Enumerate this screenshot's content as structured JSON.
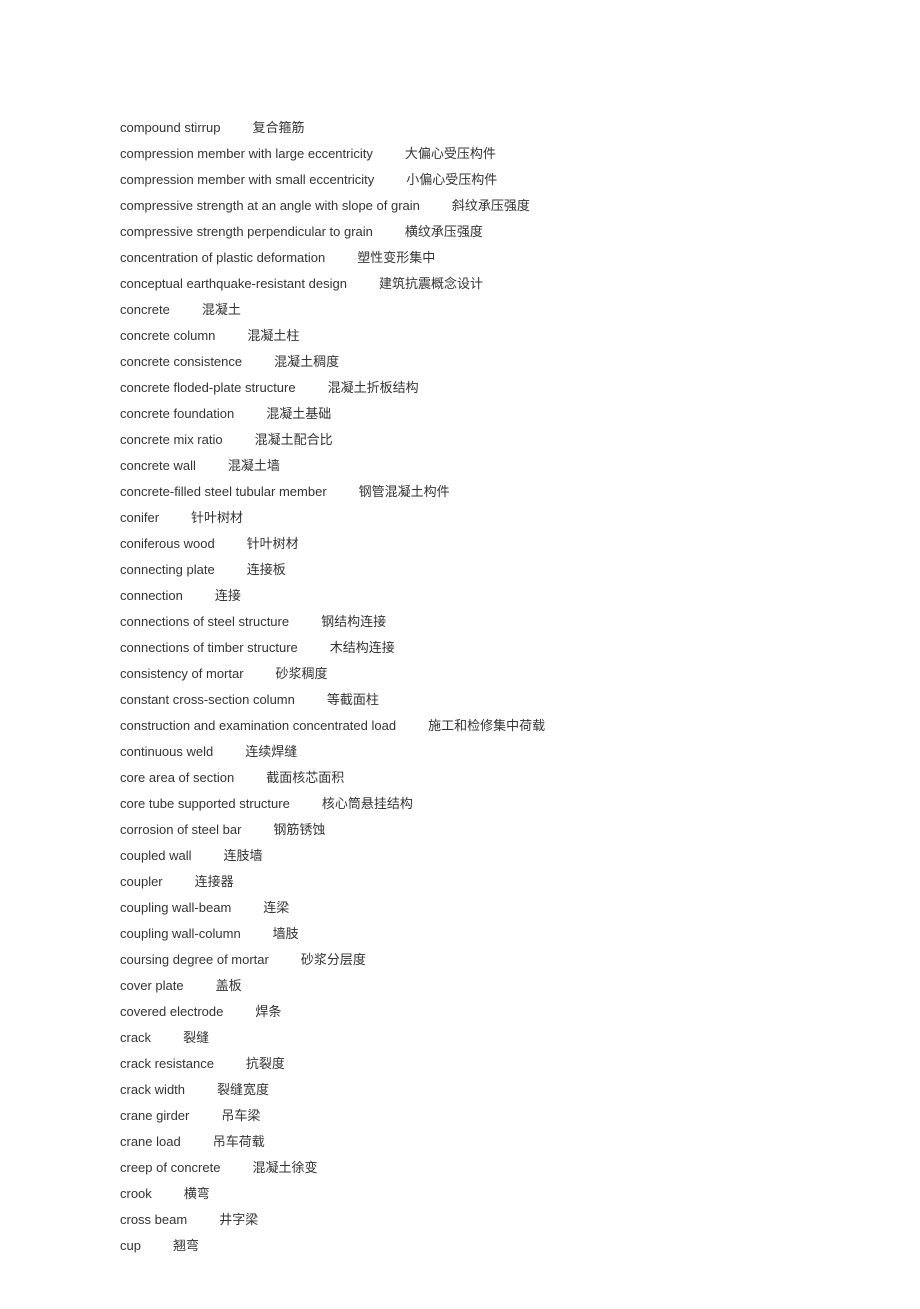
{
  "entries": [
    {
      "en": "compound stirrup",
      "zh": "复合箍筋"
    },
    {
      "en": "compression member with large eccentricity",
      "zh": "大偏心受压构件"
    },
    {
      "en": "compression member with small eccentricity",
      "zh": "小偏心受压构件"
    },
    {
      "en": "compressive strength at an angle with slope of grain",
      "zh": "斜纹承压强度"
    },
    {
      "en": "compressive strength perpendicular to grain",
      "zh": "横纹承压强度"
    },
    {
      "en": "concentration of plastic deformation",
      "zh": "塑性变形集中"
    },
    {
      "en": "conceptual earthquake-resistant design",
      "zh": "建筑抗震概念设计"
    },
    {
      "en": "concrete",
      "zh": "混凝土"
    },
    {
      "en": "concrete column",
      "zh": "混凝土柱"
    },
    {
      "en": "concrete consistence",
      "zh": "混凝土稠度"
    },
    {
      "en": "concrete floded-plate structure",
      "zh": "混凝土折板结构"
    },
    {
      "en": "concrete foundation",
      "zh": "混凝土基础"
    },
    {
      "en": "concrete mix ratio",
      "zh": "混凝土配合比"
    },
    {
      "en": "concrete wall",
      "zh": "混凝土墙"
    },
    {
      "en": "concrete-filled steel tubular member",
      "zh": "钢管混凝土构件"
    },
    {
      "en": "conifer",
      "zh": "针叶树材"
    },
    {
      "en": "coniferous wood",
      "zh": "针叶树材"
    },
    {
      "en": "connecting plate",
      "zh": "连接板"
    },
    {
      "en": "connection",
      "zh": "连接"
    },
    {
      "en": "connections of steel structure",
      "zh": "钢结构连接"
    },
    {
      "en": "connections of timber structure",
      "zh": "木结构连接"
    },
    {
      "en": "consistency of mortar",
      "zh": "砂浆稠度"
    },
    {
      "en": "constant cross-section column",
      "zh": "等截面柱"
    },
    {
      "en": "construction and examination concentrated load",
      "zh": "施工和检修集中荷载"
    },
    {
      "en": "continuous weld",
      "zh": "连续焊缝"
    },
    {
      "en": "core area of section",
      "zh": "截面核芯面积"
    },
    {
      "en": "core tube supported structure",
      "zh": "核心筒悬挂结构"
    },
    {
      "en": "corrosion of steel bar",
      "zh": "钢筋锈蚀"
    },
    {
      "en": "coupled wall",
      "zh": "连肢墙"
    },
    {
      "en": "coupler",
      "zh": "连接器"
    },
    {
      "en": "coupling wall-beam",
      "zh": "连梁"
    },
    {
      "en": "coupling wall-column",
      "zh": "墙肢"
    },
    {
      "en": "coursing degree of mortar",
      "zh": "砂浆分层度"
    },
    {
      "en": "cover plate",
      "zh": "盖板"
    },
    {
      "en": "covered electrode",
      "zh": "焊条"
    },
    {
      "en": "crack",
      "zh": "裂缝"
    },
    {
      "en": "crack resistance",
      "zh": "抗裂度"
    },
    {
      "en": "crack width",
      "zh": "裂缝宽度"
    },
    {
      "en": "crane girder",
      "zh": "吊车梁"
    },
    {
      "en": "crane load",
      "zh": "吊车荷载"
    },
    {
      "en": "creep of concrete",
      "zh": "混凝土徐变"
    },
    {
      "en": "crook",
      "zh": "横弯"
    },
    {
      "en": "cross beam",
      "zh": "井字梁"
    },
    {
      "en": "cup",
      "zh": "翘弯"
    }
  ]
}
